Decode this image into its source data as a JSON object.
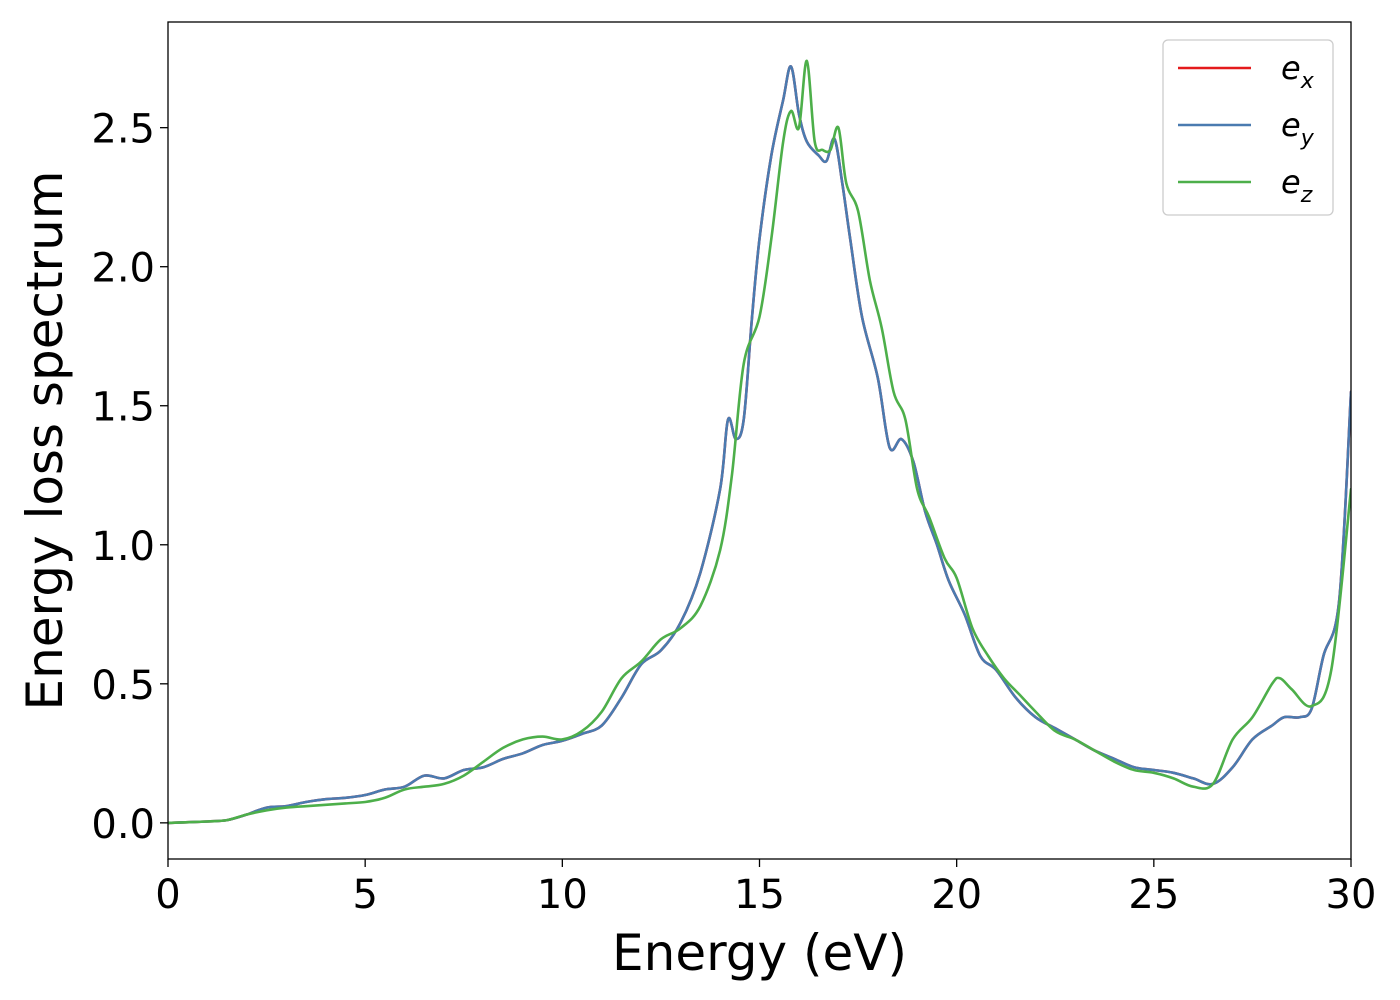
{
  "chart_data": {
    "type": "line",
    "title": "",
    "xlabel": "Energy (eV)",
    "ylabel": "Energy loss spectrum",
    "xlim": [
      0,
      30
    ],
    "ylim": [
      -0.13,
      2.88
    ],
    "xticks": [
      0,
      5,
      10,
      15,
      20,
      25,
      30
    ],
    "xtick_labels": [
      "0",
      "5",
      "10",
      "15",
      "20",
      "25",
      "30"
    ],
    "yticks": [
      0.0,
      0.5,
      1.0,
      1.5,
      2.0,
      2.5
    ],
    "ytick_labels": [
      "0.0",
      "0.5",
      "1.0",
      "1.5",
      "2.0",
      "2.5"
    ],
    "grid": false,
    "legend_position": "top-right",
    "series": [
      {
        "name": "e_x",
        "legend_base": "e",
        "legend_sub": "x",
        "color": "#e41a1c",
        "x": [
          0,
          1,
          1.5,
          2,
          2.5,
          3,
          3.5,
          4,
          4.5,
          5,
          5.5,
          6,
          6.5,
          7,
          7.5,
          8,
          8.5,
          9,
          9.5,
          10,
          10.5,
          11,
          11.5,
          12,
          12.5,
          13,
          13.5,
          14,
          14.2,
          14.4,
          14.6,
          14.8,
          15,
          15.3,
          15.6,
          15.8,
          16,
          16.2,
          16.5,
          16.7,
          16.9,
          17.1,
          17.3,
          17.6,
          18,
          18.3,
          18.6,
          18.9,
          19.2,
          19.5,
          19.8,
          20.2,
          20.6,
          21,
          21.5,
          22,
          22.5,
          23,
          23.5,
          24,
          24.5,
          25,
          25.5,
          26,
          26.5,
          27,
          27.5,
          28,
          28.3,
          28.7,
          29,
          29.3,
          29.7,
          30
        ],
        "y": [
          0.0,
          0.005,
          0.01,
          0.03,
          0.055,
          0.06,
          0.075,
          0.085,
          0.09,
          0.1,
          0.12,
          0.13,
          0.17,
          0.16,
          0.19,
          0.2,
          0.23,
          0.25,
          0.28,
          0.295,
          0.32,
          0.35,
          0.45,
          0.57,
          0.62,
          0.72,
          0.9,
          1.2,
          1.45,
          1.38,
          1.45,
          1.8,
          2.1,
          2.4,
          2.6,
          2.72,
          2.55,
          2.45,
          2.4,
          2.38,
          2.46,
          2.3,
          2.1,
          1.82,
          1.6,
          1.35,
          1.38,
          1.3,
          1.12,
          1.0,
          0.87,
          0.75,
          0.6,
          0.55,
          0.45,
          0.38,
          0.34,
          0.3,
          0.26,
          0.23,
          0.2,
          0.19,
          0.18,
          0.16,
          0.14,
          0.2,
          0.3,
          0.35,
          0.38,
          0.38,
          0.41,
          0.6,
          0.8,
          1.55
        ]
      },
      {
        "name": "e_y",
        "legend_base": "e",
        "legend_sub": "y",
        "color": "#4a7bb0",
        "x": [
          0,
          1,
          1.5,
          2,
          2.5,
          3,
          3.5,
          4,
          4.5,
          5,
          5.5,
          6,
          6.5,
          7,
          7.5,
          8,
          8.5,
          9,
          9.5,
          10,
          10.5,
          11,
          11.5,
          12,
          12.5,
          13,
          13.5,
          14,
          14.2,
          14.4,
          14.6,
          14.8,
          15,
          15.3,
          15.6,
          15.8,
          16,
          16.2,
          16.5,
          16.7,
          16.9,
          17.1,
          17.3,
          17.6,
          18,
          18.3,
          18.6,
          18.9,
          19.2,
          19.5,
          19.8,
          20.2,
          20.6,
          21,
          21.5,
          22,
          22.5,
          23,
          23.5,
          24,
          24.5,
          25,
          25.5,
          26,
          26.5,
          27,
          27.5,
          28,
          28.3,
          28.7,
          29,
          29.3,
          29.7,
          30
        ],
        "y": [
          0.0,
          0.005,
          0.01,
          0.03,
          0.055,
          0.06,
          0.075,
          0.085,
          0.09,
          0.1,
          0.12,
          0.13,
          0.17,
          0.16,
          0.19,
          0.2,
          0.23,
          0.25,
          0.28,
          0.295,
          0.32,
          0.35,
          0.45,
          0.57,
          0.62,
          0.72,
          0.9,
          1.2,
          1.45,
          1.38,
          1.45,
          1.8,
          2.1,
          2.4,
          2.6,
          2.72,
          2.55,
          2.45,
          2.4,
          2.38,
          2.46,
          2.3,
          2.1,
          1.82,
          1.6,
          1.35,
          1.38,
          1.3,
          1.12,
          1.0,
          0.87,
          0.75,
          0.6,
          0.55,
          0.45,
          0.38,
          0.34,
          0.3,
          0.26,
          0.23,
          0.2,
          0.19,
          0.18,
          0.16,
          0.14,
          0.2,
          0.3,
          0.35,
          0.38,
          0.38,
          0.41,
          0.6,
          0.8,
          1.55
        ]
      },
      {
        "name": "e_z",
        "legend_base": "e",
        "legend_sub": "z",
        "color": "#4daf4a",
        "x": [
          0,
          1,
          1.5,
          2,
          2.5,
          3,
          3.5,
          4,
          4.5,
          5,
          5.5,
          6,
          6.5,
          7,
          7.5,
          8,
          8.5,
          9,
          9.5,
          10,
          10.5,
          11,
          11.5,
          12,
          12.5,
          13,
          13.5,
          14,
          14.3,
          14.6,
          15,
          15.3,
          15.6,
          15.8,
          16,
          16.2,
          16.4,
          16.6,
          16.8,
          17,
          17.2,
          17.5,
          17.8,
          18.1,
          18.4,
          18.7,
          19,
          19.3,
          19.7,
          20,
          20.4,
          20.8,
          21.2,
          21.6,
          22,
          22.5,
          23,
          23.5,
          24,
          24.5,
          25,
          25.5,
          26,
          26.5,
          27,
          27.5,
          28,
          28.2,
          28.5,
          29,
          29.5,
          30
        ],
        "y": [
          0.0,
          0.005,
          0.01,
          0.03,
          0.045,
          0.055,
          0.06,
          0.065,
          0.07,
          0.075,
          0.09,
          0.12,
          0.13,
          0.14,
          0.17,
          0.22,
          0.27,
          0.3,
          0.31,
          0.3,
          0.33,
          0.4,
          0.52,
          0.58,
          0.66,
          0.7,
          0.78,
          0.98,
          1.25,
          1.65,
          1.82,
          2.1,
          2.45,
          2.56,
          2.5,
          2.74,
          2.45,
          2.42,
          2.42,
          2.5,
          2.3,
          2.2,
          1.95,
          1.78,
          1.55,
          1.45,
          1.2,
          1.1,
          0.95,
          0.88,
          0.7,
          0.6,
          0.52,
          0.46,
          0.4,
          0.33,
          0.3,
          0.26,
          0.22,
          0.19,
          0.18,
          0.16,
          0.13,
          0.14,
          0.3,
          0.38,
          0.5,
          0.52,
          0.48,
          0.42,
          0.55,
          1.2
        ]
      }
    ]
  }
}
